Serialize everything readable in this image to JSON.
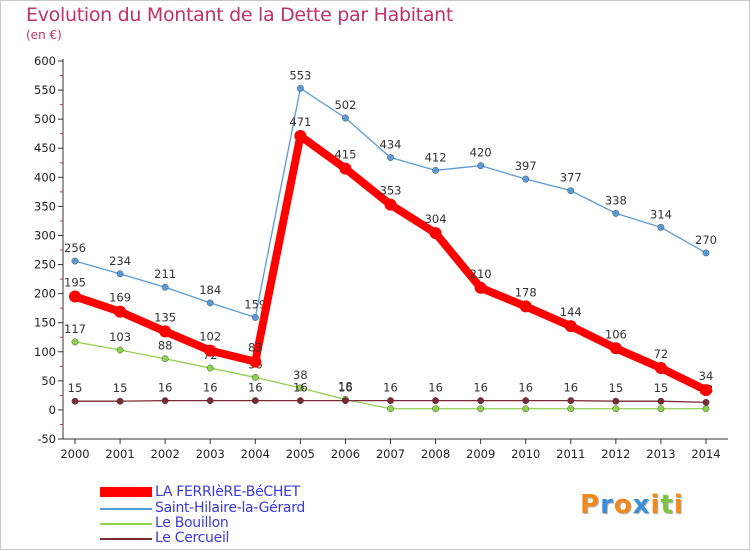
{
  "title": "Evolution du Montant de la Dette par Habitant",
  "subtitle": "(en €)",
  "logo": {
    "text": "Proxiti",
    "colors": [
      "#f08a1c",
      "#3b8fd6",
      "#f08a1c",
      "#3b8fd6",
      "#f08a1c",
      "#7cc242",
      "#f08a1c"
    ]
  },
  "chart_data": {
    "type": "line",
    "x": [
      "2000",
      "2001",
      "2002",
      "2003",
      "2004",
      "2005",
      "2006",
      "2007",
      "2008",
      "2009",
      "2010",
      "2011",
      "2012",
      "2013",
      "2014"
    ],
    "ylim": [
      -50,
      600
    ],
    "yticks": [
      -50,
      0,
      50,
      100,
      150,
      200,
      250,
      300,
      350,
      400,
      450,
      500,
      550,
      600
    ],
    "grid": false,
    "legend_position": "bottom-left",
    "series": [
      {
        "name": "Saint-Hilaire-la-Gérard",
        "color": "#5b9bd5",
        "values": [
          256,
          234,
          211,
          184,
          159,
          553,
          502,
          434,
          412,
          420,
          397,
          377,
          338,
          314,
          270
        ],
        "labels": [
          "256",
          "234",
          "211",
          "184",
          "159",
          "553",
          "502",
          "434",
          "412",
          "420",
          "397",
          "377",
          "338",
          "314",
          "270"
        ]
      },
      {
        "name": "Le Bouillon",
        "color": "#8fd14f",
        "values": [
          117,
          103,
          88,
          72,
          56,
          38,
          18,
          2,
          2,
          2,
          2,
          2,
          2,
          2,
          2
        ],
        "labels": [
          "117",
          "103",
          "88",
          "72",
          "56",
          "38",
          "18",
          "",
          "",
          "",
          "",
          "",
          "",
          "",
          ""
        ]
      },
      {
        "name": "Le Cercueil",
        "color": "#7b2a36",
        "values": [
          15,
          15,
          16,
          16,
          16,
          16,
          16,
          16,
          16,
          16,
          16,
          16,
          15,
          15,
          13
        ],
        "labels": [
          "15",
          "15",
          "16",
          "16",
          "16",
          "16",
          "16",
          "16",
          "16",
          "16",
          "16",
          "16",
          "15",
          "15",
          "13"
        ]
      },
      {
        "name": "LA FERRIèRE-BéCHET",
        "color": "#ff0000",
        "values": [
          195,
          169,
          135,
          102,
          83,
          471,
          415,
          353,
          304,
          210,
          178,
          144,
          106,
          72,
          34
        ],
        "labels": [
          "195",
          "169",
          "135",
          "102",
          "83",
          "471",
          "415",
          "353",
          "304",
          "210",
          "178",
          "144",
          "106",
          "72",
          "34"
        ]
      }
    ],
    "legend": [
      {
        "name": "LA FERRIèRE-BéCHET",
        "color": "#ff0000",
        "text_color": "#3a3ad8"
      },
      {
        "name": "Saint-Hilaire-la-Gérard",
        "color": "#5b9bd5",
        "text_color": "#3a3ad8"
      },
      {
        "name": "Le Bouillon",
        "color": "#8fd14f",
        "text_color": "#3a3ad8"
      },
      {
        "name": "Le Cercueil",
        "color": "#7b2a36",
        "text_color": "#3a3ad8"
      }
    ]
  }
}
